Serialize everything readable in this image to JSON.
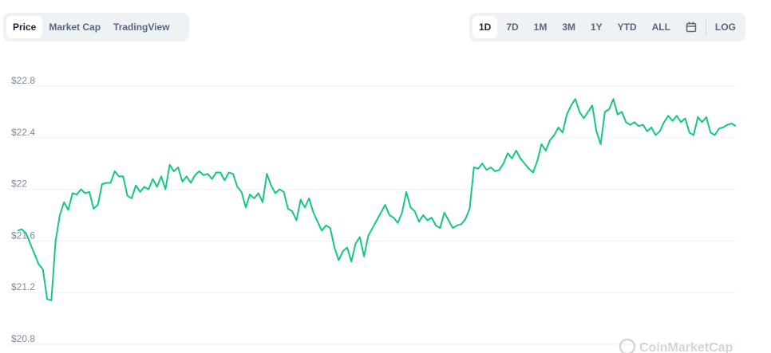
{
  "ui": {
    "tabs": [
      "Price",
      "Market Cap",
      "TradingView"
    ],
    "ranges": [
      "1D",
      "7D",
      "1M",
      "3M",
      "1Y",
      "YTD",
      "ALL"
    ],
    "log": "LOG",
    "watermark": "CoinMarketCap"
  },
  "chart_data": {
    "type": "line",
    "color": "#16c784",
    "grid": true,
    "ylim": [
      20.8,
      22.8
    ],
    "yticks": [
      {
        "value": 20.8,
        "label": "$20.8"
      },
      {
        "value": 21.2,
        "label": "$21.2"
      },
      {
        "value": 21.6,
        "label": "$21.6"
      },
      {
        "value": 22,
        "label": "$22"
      },
      {
        "value": 22.4,
        "label": "$22.4"
      },
      {
        "value": 22.8,
        "label": "$22.8"
      }
    ],
    "values": [
      21.68,
      21.69,
      21.66,
      21.58,
      21.5,
      21.42,
      21.38,
      21.15,
      21.14,
      21.6,
      21.8,
      21.9,
      21.84,
      21.97,
      21.96,
      22.0,
      21.97,
      21.98,
      21.85,
      21.88,
      22.04,
      22.05,
      22.05,
      22.14,
      22.1,
      22.1,
      21.95,
      21.93,
      22.03,
      21.98,
      22.02,
      22.0,
      22.08,
      22.02,
      22.1,
      22.0,
      22.19,
      22.14,
      22.17,
      22.06,
      22.1,
      22.05,
      22.11,
      22.14,
      22.11,
      22.12,
      22.08,
      22.13,
      22.13,
      22.07,
      22.13,
      22.12,
      22.02,
      21.98,
      21.86,
      21.96,
      21.93,
      21.97,
      21.9,
      22.12,
      22.03,
      21.97,
      22.0,
      21.98,
      21.85,
      21.83,
      21.76,
      21.92,
      21.86,
      21.93,
      21.82,
      21.75,
      21.68,
      21.72,
      21.7,
      21.55,
      21.45,
      21.52,
      21.55,
      21.44,
      21.58,
      21.63,
      21.48,
      21.64,
      21.7,
      21.76,
      21.82,
      21.88,
      21.8,
      21.78,
      21.74,
      21.82,
      21.98,
      21.86,
      21.83,
      21.75,
      21.8,
      21.76,
      21.78,
      21.72,
      21.7,
      21.82,
      21.76,
      21.7,
      21.72,
      21.73,
      21.77,
      21.85,
      22.17,
      22.16,
      22.2,
      22.15,
      22.17,
      22.14,
      22.15,
      22.2,
      22.28,
      22.24,
      22.3,
      22.24,
      22.2,
      22.16,
      22.13,
      22.22,
      22.35,
      22.3,
      22.38,
      22.42,
      22.48,
      22.44,
      22.58,
      22.65,
      22.7,
      22.6,
      22.55,
      22.6,
      22.65,
      22.45,
      22.35,
      22.6,
      22.62,
      22.7,
      22.58,
      22.6,
      22.52,
      22.5,
      22.52,
      22.49,
      22.5,
      22.45,
      22.48,
      22.42,
      22.45,
      22.52,
      22.57,
      22.53,
      22.57,
      22.52,
      22.55,
      22.44,
      22.42,
      22.56,
      22.52,
      22.56,
      22.44,
      22.42,
      22.47,
      22.48,
      22.5,
      22.51,
      22.49
    ]
  }
}
